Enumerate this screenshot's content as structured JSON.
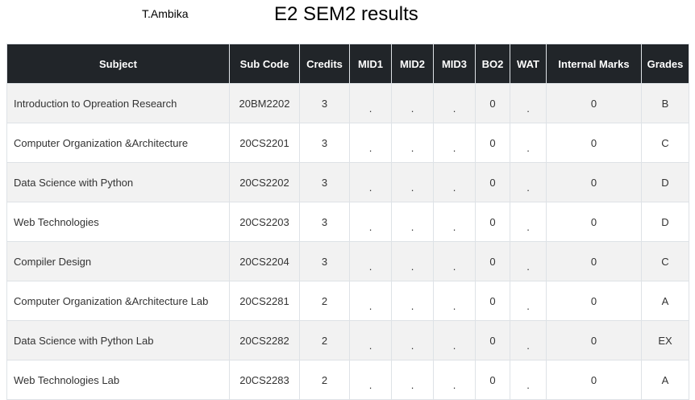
{
  "header": {
    "student_name": "T.Ambika",
    "title": "E2 SEM2 results"
  },
  "table": {
    "columns": [
      "Subject",
      "Sub Code",
      "Credits",
      "MID1",
      "MID2",
      "MID3",
      "BO2",
      "WAT",
      "Internal Marks",
      "Grades"
    ],
    "rows": [
      [
        "Introduction to Opreation Research",
        "20BM2202",
        "3",
        ".",
        ".",
        ".",
        "0",
        ".",
        "0",
        "B"
      ],
      [
        "Computer Organization &Architecture",
        "20CS2201",
        "3",
        ".",
        ".",
        ".",
        "0",
        ".",
        "0",
        "C"
      ],
      [
        "Data Science with Python",
        "20CS2202",
        "3",
        ".",
        ".",
        ".",
        "0",
        ".",
        "0",
        "D"
      ],
      [
        "Web Technologies",
        "20CS2203",
        "3",
        ".",
        ".",
        ".",
        "0",
        ".",
        "0",
        "D"
      ],
      [
        "Compiler Design",
        "20CS2204",
        "3",
        ".",
        ".",
        ".",
        "0",
        ".",
        "0",
        "C"
      ],
      [
        "Computer Organization &Architecture Lab",
        "20CS2281",
        "2",
        ".",
        ".",
        ".",
        "0",
        ".",
        "0",
        "A"
      ],
      [
        "Data Science with Python Lab",
        "20CS2282",
        "2",
        ".",
        ".",
        ".",
        "0",
        ".",
        "0",
        "EX"
      ],
      [
        "Web Technologies Lab",
        "20CS2283",
        "2",
        ".",
        ".",
        ".",
        "0",
        ".",
        "0",
        "A"
      ]
    ]
  }
}
